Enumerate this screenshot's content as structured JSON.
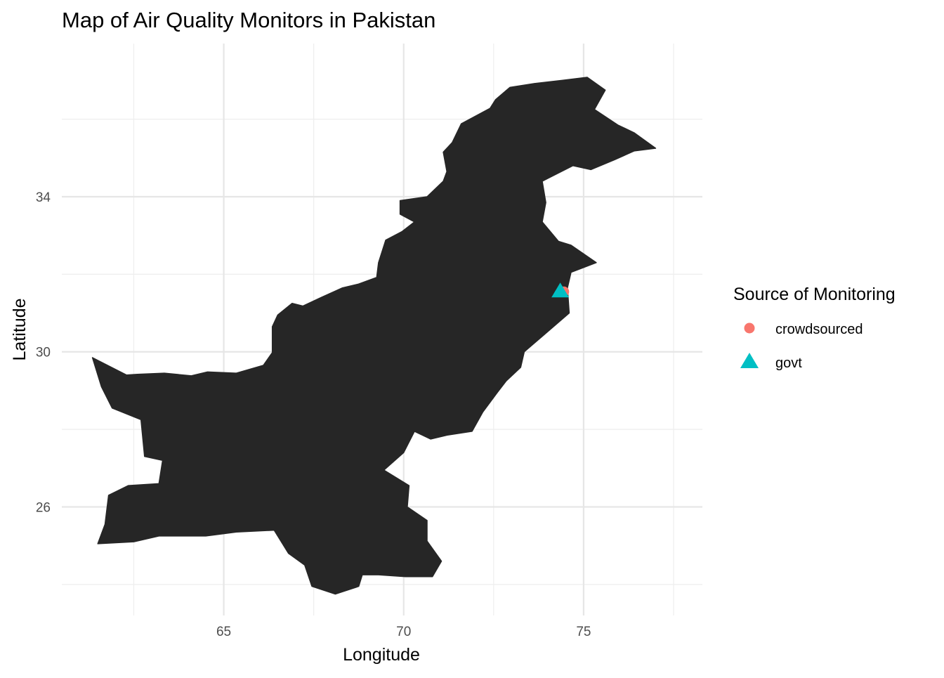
{
  "chart_data": {
    "type": "scatter",
    "title": "Map of Air Quality Monitors in Pakistan",
    "xlabel": "Longitude",
    "ylabel": "Latitude",
    "xlim": [
      60.5,
      78.3
    ],
    "ylim": [
      23.2,
      37.95
    ],
    "x_major_ticks": [
      65,
      70,
      75
    ],
    "x_minor_ticks": [
      62.5,
      67.5,
      72.5,
      77.5
    ],
    "y_major_ticks": [
      26,
      30,
      34
    ],
    "y_minor_ticks": [
      24,
      28,
      32,
      36
    ],
    "grid": true,
    "legend_position": "right",
    "basemap": "Pakistan",
    "basemap_color": "#262626",
    "legend": {
      "title": "Source of Monitoring",
      "items": [
        {
          "label": "crowdsourced",
          "shape": "circle",
          "color": "#F8766D"
        },
        {
          "label": "govt",
          "shape": "triangle",
          "color": "#00BFC4"
        }
      ]
    },
    "series": [
      {
        "name": "crowdsourced",
        "shape": "circle",
        "color": "#F8766D",
        "points": [
          {
            "x": 74.45,
            "y": 31.55
          }
        ]
      },
      {
        "name": "govt",
        "shape": "triangle",
        "color": "#00BFC4",
        "points": [
          {
            "x": 74.35,
            "y": 31.55
          }
        ]
      }
    ],
    "outline": [
      [
        61.35,
        29.85
      ],
      [
        62.3,
        29.4
      ],
      [
        62.6,
        29.42
      ],
      [
        63.35,
        29.45
      ],
      [
        64.1,
        29.38
      ],
      [
        64.55,
        29.48
      ],
      [
        65.35,
        29.45
      ],
      [
        66.1,
        29.65
      ],
      [
        66.35,
        29.98
      ],
      [
        66.35,
        30.65
      ],
      [
        66.5,
        30.95
      ],
      [
        66.9,
        31.25
      ],
      [
        67.2,
        31.18
      ],
      [
        67.7,
        31.4
      ],
      [
        68.3,
        31.65
      ],
      [
        68.75,
        31.75
      ],
      [
        69.25,
        31.92
      ],
      [
        69.3,
        32.3
      ],
      [
        69.5,
        32.88
      ],
      [
        69.95,
        33.1
      ],
      [
        70.3,
        33.35
      ],
      [
        69.9,
        33.55
      ],
      [
        69.9,
        33.9
      ],
      [
        70.65,
        34.0
      ],
      [
        71.1,
        34.4
      ],
      [
        71.2,
        34.65
      ],
      [
        71.1,
        35.15
      ],
      [
        71.35,
        35.4
      ],
      [
        71.6,
        35.88
      ],
      [
        72.4,
        36.28
      ],
      [
        72.55,
        36.5
      ],
      [
        72.95,
        36.82
      ],
      [
        73.65,
        36.92
      ],
      [
        74.4,
        37.0
      ],
      [
        75.1,
        37.08
      ],
      [
        75.6,
        36.75
      ],
      [
        75.3,
        36.25
      ],
      [
        75.95,
        35.85
      ],
      [
        76.4,
        35.65
      ],
      [
        77.0,
        35.25
      ],
      [
        76.4,
        35.18
      ],
      [
        75.85,
        34.95
      ],
      [
        75.2,
        34.7
      ],
      [
        74.7,
        34.8
      ],
      [
        73.85,
        34.4
      ],
      [
        73.95,
        33.85
      ],
      [
        73.85,
        33.35
      ],
      [
        74.3,
        32.85
      ],
      [
        74.65,
        32.75
      ],
      [
        75.35,
        32.3
      ],
      [
        74.65,
        32.05
      ],
      [
        74.55,
        31.65
      ],
      [
        74.6,
        31.0
      ],
      [
        73.85,
        30.4
      ],
      [
        73.35,
        30.0
      ],
      [
        73.25,
        29.6
      ],
      [
        72.85,
        29.25
      ],
      [
        72.6,
        28.95
      ],
      [
        72.2,
        28.45
      ],
      [
        71.9,
        27.95
      ],
      [
        71.2,
        27.85
      ],
      [
        70.75,
        27.75
      ],
      [
        70.3,
        27.95
      ],
      [
        70.0,
        27.4
      ],
      [
        69.45,
        26.95
      ],
      [
        70.15,
        26.55
      ],
      [
        70.1,
        26.0
      ],
      [
        70.65,
        25.65
      ],
      [
        70.65,
        25.12
      ],
      [
        71.05,
        24.6
      ],
      [
        70.8,
        24.2
      ],
      [
        70.05,
        24.2
      ],
      [
        69.3,
        24.25
      ],
      [
        68.85,
        24.25
      ],
      [
        68.75,
        23.95
      ],
      [
        68.1,
        23.75
      ],
      [
        67.45,
        23.95
      ],
      [
        67.25,
        24.5
      ],
      [
        66.8,
        24.8
      ],
      [
        66.4,
        25.4
      ],
      [
        65.35,
        25.35
      ],
      [
        64.5,
        25.25
      ],
      [
        63.2,
        25.25
      ],
      [
        62.5,
        25.1
      ],
      [
        61.5,
        25.05
      ],
      [
        61.7,
        25.55
      ],
      [
        61.8,
        26.3
      ],
      [
        62.35,
        26.55
      ],
      [
        63.2,
        26.6
      ],
      [
        63.3,
        27.2
      ],
      [
        62.8,
        27.3
      ],
      [
        62.7,
        28.25
      ],
      [
        61.9,
        28.55
      ],
      [
        61.6,
        29.1
      ],
      [
        61.35,
        29.85
      ]
    ]
  }
}
